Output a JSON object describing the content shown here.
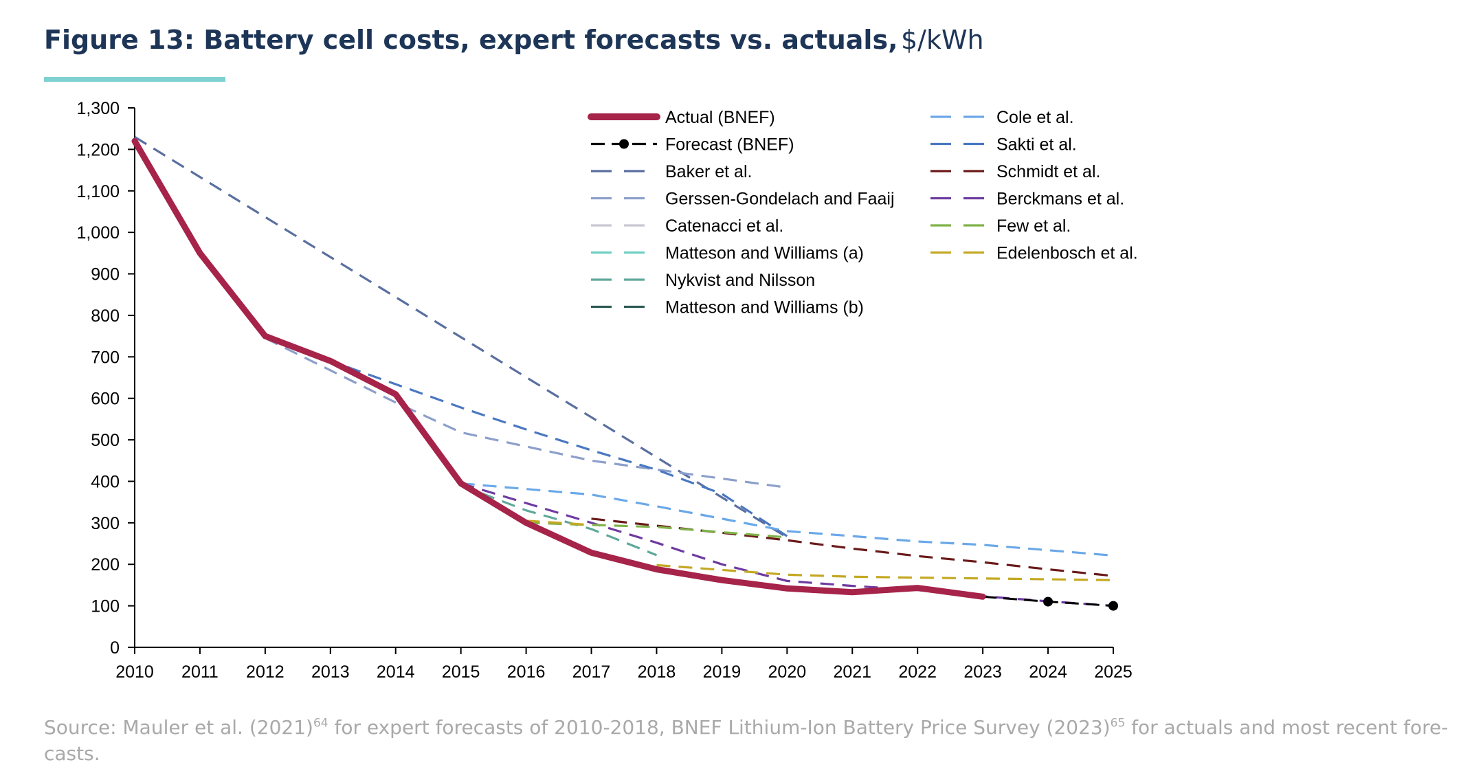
{
  "title": {
    "main": "Figure 13: Battery cell costs, expert forecasts vs. actuals,",
    "unit": "$/kWh"
  },
  "colors": {
    "title": "#1d3557",
    "accent_rule": "#7fd1d1",
    "source_text": "#a9a9a9"
  },
  "source": {
    "part1": "Source: Mauler et al. (2021)",
    "sup1": "64",
    "part2": " for expert forecasts of 2010-2018, BNEF Lithium-Ion Battery Price Survey (2023)",
    "sup2": "65",
    "part3": " for actuals and most recent fore-casts."
  },
  "chart_data": {
    "type": "line",
    "xlabel": "",
    "ylabel": "",
    "xlim": [
      2010,
      2025
    ],
    "ylim": [
      0,
      1300
    ],
    "x_ticks": [
      2010,
      2011,
      2012,
      2013,
      2014,
      2015,
      2016,
      2017,
      2018,
      2019,
      2020,
      2021,
      2022,
      2023,
      2024,
      2025
    ],
    "y_ticks": [
      {
        "value": 0,
        "label": "0"
      },
      {
        "value": 100,
        "label": "100"
      },
      {
        "value": 200,
        "label": "200"
      },
      {
        "value": 300,
        "label": "300"
      },
      {
        "value": 400,
        "label": "400"
      },
      {
        "value": 500,
        "label": "500"
      },
      {
        "value": 600,
        "label": "600"
      },
      {
        "value": 700,
        "label": "700"
      },
      {
        "value": 800,
        "label": "800"
      },
      {
        "value": 900,
        "label": "900"
      },
      {
        "value": 1000,
        "label": "1,000"
      },
      {
        "value": 1100,
        "label": "1,100"
      },
      {
        "value": 1200,
        "label": "1,200"
      },
      {
        "value": 1300,
        "label": "1,300"
      }
    ],
    "grid": false,
    "legend_position": "top-center",
    "series": [
      {
        "name": "Actual (BNEF)",
        "color": "#a6234a",
        "style": "solid-thick",
        "points": [
          [
            2010,
            1220
          ],
          [
            2011,
            950
          ],
          [
            2012,
            750
          ],
          [
            2013,
            690
          ],
          [
            2014,
            610
          ],
          [
            2015,
            395
          ],
          [
            2016,
            300
          ],
          [
            2017,
            228
          ],
          [
            2018,
            188
          ],
          [
            2019,
            162
          ],
          [
            2020,
            142
          ],
          [
            2021,
            133
          ],
          [
            2022,
            143
          ],
          [
            2023,
            122
          ]
        ]
      },
      {
        "name": "Forecast (BNEF)",
        "color": "#000000",
        "style": "dash-dot-markers",
        "points": [
          [
            2023,
            122
          ],
          [
            2024,
            110
          ],
          [
            2025,
            100
          ]
        ],
        "markers": [
          [
            2024,
            110
          ],
          [
            2025,
            100
          ]
        ]
      },
      {
        "name": "Baker et al.",
        "color": "#5a6fa0",
        "style": "dashed",
        "points": [
          [
            2010,
            1230
          ],
          [
            2020,
            265
          ]
        ]
      },
      {
        "name": "Gerssen-Gondelach and Faaij",
        "color": "#8c9fcb",
        "style": "dashed",
        "points": [
          [
            2012,
            745
          ],
          [
            2014,
            590
          ],
          [
            2015,
            518
          ],
          [
            2017,
            450
          ],
          [
            2020,
            385
          ]
        ]
      },
      {
        "name": "Catenacci et al.",
        "color": "#c8c8d0",
        "style": "dashed",
        "points": []
      },
      {
        "name": "Matteson and Williams (a)",
        "color": "#6ecfc4",
        "style": "dashed",
        "points": []
      },
      {
        "name": "Nykvist and Nilsson",
        "color": "#5fa89a",
        "style": "dashed",
        "points": [
          [
            2015,
            390
          ],
          [
            2016,
            330
          ],
          [
            2017,
            285
          ],
          [
            2018,
            222
          ]
        ]
      },
      {
        "name": "Matteson and Williams (b)",
        "color": "#2e5c55",
        "style": "dashed",
        "points": []
      },
      {
        "name": "Cole et al.",
        "color": "#6aa8e8",
        "style": "dashed",
        "points": [
          [
            2015,
            395
          ],
          [
            2017,
            368
          ],
          [
            2018,
            340
          ],
          [
            2020,
            280
          ],
          [
            2021,
            268
          ],
          [
            2022,
            255
          ],
          [
            2023,
            247
          ],
          [
            2025,
            221
          ]
        ]
      },
      {
        "name": "Sakti et al.",
        "color": "#4a78c0",
        "style": "dashed",
        "points": [
          [
            2012,
            750
          ],
          [
            2013,
            690
          ],
          [
            2015,
            578
          ],
          [
            2016,
            525
          ],
          [
            2017,
            475
          ],
          [
            2018,
            428
          ],
          [
            2019,
            370
          ],
          [
            2020,
            268
          ]
        ]
      },
      {
        "name": "Schmidt et al.",
        "color": "#6b1a1a",
        "style": "dashed",
        "points": [
          [
            2017,
            310
          ],
          [
            2019,
            276
          ],
          [
            2020,
            258
          ],
          [
            2021,
            238
          ],
          [
            2022,
            220
          ],
          [
            2023,
            205
          ],
          [
            2024,
            188
          ],
          [
            2025,
            172
          ]
        ]
      },
      {
        "name": "Berckmans et al.",
        "color": "#6e3aa0",
        "style": "dashed",
        "points": [
          [
            2015,
            395
          ],
          [
            2017,
            300
          ],
          [
            2018,
            252
          ],
          [
            2019,
            200
          ],
          [
            2020,
            160
          ],
          [
            2021,
            148
          ],
          [
            2022,
            138
          ],
          [
            2023,
            123
          ],
          [
            2024,
            111
          ],
          [
            2025,
            100
          ]
        ]
      },
      {
        "name": "Few et al.",
        "color": "#7fb24a",
        "style": "dashed",
        "points": [
          [
            2016,
            300
          ],
          [
            2018,
            290
          ],
          [
            2020,
            265
          ]
        ]
      },
      {
        "name": "Edelenbosch et al.",
        "color": "#c4a823",
        "style": "dashed",
        "points": [
          [
            2016,
            305
          ],
          [
            2017,
            295
          ]
        ],
        "points2": [
          [
            2018,
            198
          ],
          [
            2020,
            175
          ],
          [
            2021,
            170
          ],
          [
            2022,
            168
          ],
          [
            2025,
            162
          ]
        ]
      }
    ]
  }
}
